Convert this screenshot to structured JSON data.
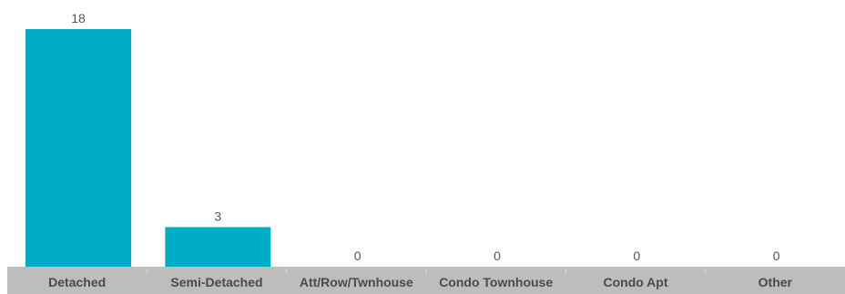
{
  "chart_data": {
    "type": "bar",
    "title": "",
    "xlabel": "",
    "ylabel": "",
    "categories": [
      "Detached",
      "Semi-Detached",
      "Att/Row/Twnhouse",
      "Condo Townhouse",
      "Condo Apt",
      "Other"
    ],
    "values": [
      18,
      3,
      0,
      0,
      0,
      0
    ],
    "ylim": [
      0,
      18
    ],
    "grid": false,
    "legend": "none",
    "colors": {
      "bar": "#00adc7",
      "axis_band": "#bdbdbd",
      "band_separator": "#dcdcdc",
      "value_label": "#555555",
      "category_label": "#4a4a4a"
    }
  }
}
